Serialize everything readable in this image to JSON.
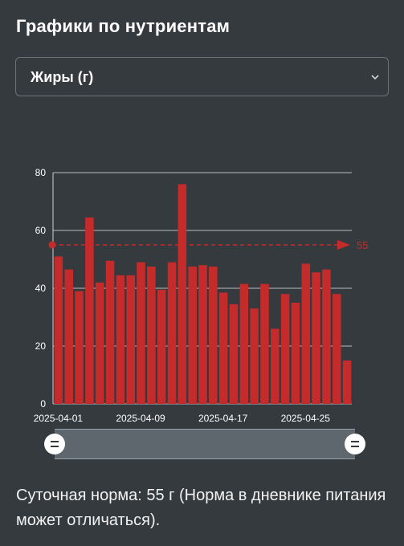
{
  "header": {
    "title": "Графики по нутриентам"
  },
  "nutrient_select": {
    "value": "Жиры (г)"
  },
  "colors": {
    "bar": "#c62b2b",
    "target": "#c62b2b",
    "background": "#353a3e",
    "grid": "#cfd3d6"
  },
  "chart_data": {
    "type": "bar",
    "title": "",
    "xlabel": "",
    "ylabel": "",
    "ylim": [
      0,
      80
    ],
    "yticks": [
      "0",
      "20",
      "40",
      "60",
      "80"
    ],
    "x_tick_labels": [
      "2025-04-01",
      "2025-04-09",
      "2025-04-17",
      "2025-04-25"
    ],
    "categories": [
      "2025-04-01",
      "2025-04-02",
      "2025-04-03",
      "2025-04-04",
      "2025-04-05",
      "2025-04-06",
      "2025-04-07",
      "2025-04-08",
      "2025-04-09",
      "2025-04-10",
      "2025-04-11",
      "2025-04-12",
      "2025-04-13",
      "2025-04-14",
      "2025-04-15",
      "2025-04-16",
      "2025-04-17",
      "2025-04-18",
      "2025-04-19",
      "2025-04-20",
      "2025-04-21",
      "2025-04-22",
      "2025-04-23",
      "2025-04-24",
      "2025-04-25",
      "2025-04-26",
      "2025-04-27",
      "2025-04-28",
      "2025-04-29"
    ],
    "values": [
      51,
      46.5,
      39,
      64.5,
      42,
      49.5,
      44.5,
      44.5,
      49,
      47.5,
      39.5,
      49,
      76,
      47.5,
      48,
      47.5,
      38.5,
      34.5,
      41.5,
      33,
      41.5,
      26,
      38,
      35,
      48.5,
      45.5,
      46.5,
      38,
      15
    ],
    "target": {
      "value": 55,
      "label": "55"
    },
    "grid": true
  },
  "footer": {
    "note": "Суточная норма: 55 г (Норма в дневнике питания может отличаться)."
  }
}
